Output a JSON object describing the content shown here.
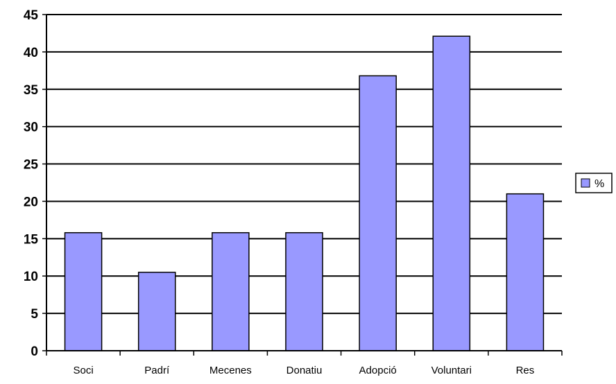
{
  "chart_data": {
    "type": "bar",
    "categories": [
      "Soci",
      "Padrí",
      "Mecenes",
      "Donatiu",
      "Adopció",
      "Voluntari",
      "Res"
    ],
    "series": [
      {
        "name": "%",
        "values": [
          15.8,
          10.5,
          15.8,
          15.8,
          36.8,
          42.1,
          21.0
        ],
        "color": "#9999ff"
      }
    ],
    "ylim": [
      0,
      45
    ],
    "y_ticks": [
      0,
      5,
      10,
      15,
      20,
      25,
      30,
      35,
      40,
      45
    ],
    "grid": true,
    "legend_position": "right",
    "title": "",
    "xlabel": "",
    "ylabel": ""
  }
}
